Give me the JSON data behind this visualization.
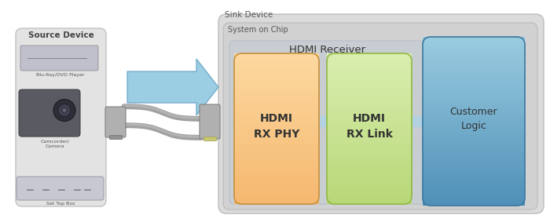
{
  "source_device_label": "Source Device",
  "sink_device_label": "Sink Device",
  "soc_label": "System on Chip",
  "hdmi_receiver_label": "HDMI Receiver",
  "phy_label": "HDMI\nRX PHY",
  "link_label": "HDMI\nRX Link",
  "customer_label": "Customer\nLogic",
  "source_items_top": "Blu-Ray/DVD Player",
  "source_items_mid": "Camcorder/\nCamera",
  "source_items_bot": "Set Top Box",
  "source_box_color": "#e0e0e0",
  "source_box_edge": "#b8b8b8",
  "sink_outer_color": "#d8d8d8",
  "sink_outer_edge": "#b8b8b8",
  "soc_color": "#cccccc",
  "soc_edge": "#aaaaaa",
  "recv_color": "#c0ccda",
  "recv_edge": "#9aacbe",
  "phy_color_top": "#f5b870",
  "phy_color_bot": "#fdd9a0",
  "phy_edge": "#c8903a",
  "link_color_top": "#b8d878",
  "link_color_bot": "#daeeb0",
  "link_edge": "#90b840",
  "cust_color_top": "#5090b8",
  "cust_color_bot": "#9acce0",
  "cust_edge": "#3878a0",
  "arrow_fill": "#88c8e0",
  "arrow_edge": "#60a8c8",
  "connector_fill": "#b0b0b0",
  "connector_edge": "#888888",
  "cable_color": "#a8a8a8",
  "text_dark": "#333333",
  "text_mid": "#555555",
  "text_light": "#ffffff"
}
